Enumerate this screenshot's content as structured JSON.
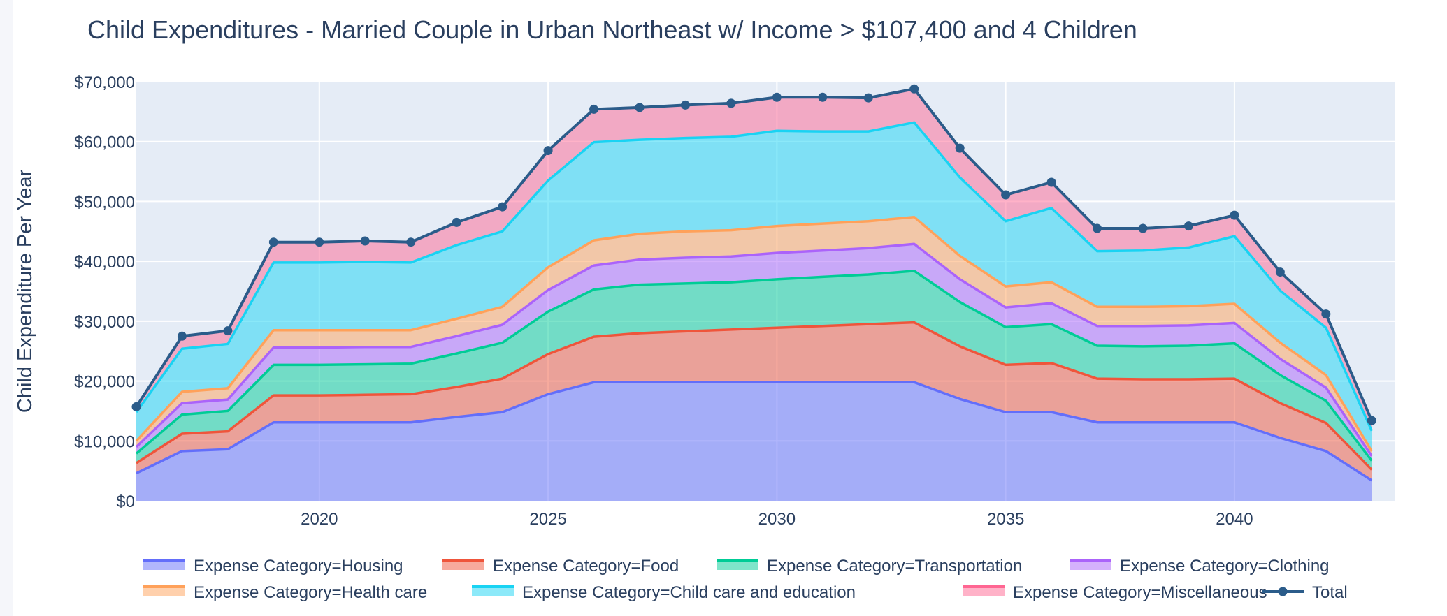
{
  "chart_data": {
    "type": "area",
    "title": "Child Expenditures - Married Couple in Urban Northeast w/ Income > $107,400 and 4 Children",
    "xlabel": "",
    "ylabel": "Child Expenditure Per Year",
    "xlim": [
      2016,
      2043.5
    ],
    "ylim": [
      0,
      70000
    ],
    "x_ticks": [
      2020,
      2025,
      2030,
      2035,
      2040
    ],
    "x_tick_labels": [
      "2020",
      "2025",
      "2030",
      "2035",
      "2040"
    ],
    "y_ticks": [
      0,
      10000,
      20000,
      30000,
      40000,
      50000,
      60000,
      70000
    ],
    "y_tick_labels": [
      "$0",
      "$10,000",
      "$20,000",
      "$30,000",
      "$40,000",
      "$50,000",
      "$60,000",
      "$70,000"
    ],
    "grid": true,
    "stacked": true,
    "legend_position": "bottom",
    "x": [
      2016,
      2017,
      2018,
      2019,
      2020,
      2021,
      2022,
      2023,
      2024,
      2025,
      2026,
      2027,
      2028,
      2029,
      2030,
      2031,
      2032,
      2033,
      2034,
      2035,
      2036,
      2037,
      2038,
      2039,
      2040,
      2041,
      2042,
      2043
    ],
    "series": [
      {
        "name": "Expense Category=Housing",
        "color": "#636efa",
        "fill": "rgba(99,110,250,0.5)",
        "values": [
          4600,
          8300,
          8600,
          13100,
          13100,
          13100,
          13100,
          14000,
          14800,
          17800,
          19800,
          19800,
          19800,
          19800,
          19800,
          19800,
          19800,
          19800,
          17000,
          14800,
          14800,
          13100,
          13100,
          13100,
          13100,
          10500,
          8300,
          3400
        ]
      },
      {
        "name": "Expense Category=Food",
        "color": "#ef553b",
        "fill": "rgba(239,85,59,0.5)",
        "values": [
          1700,
          2900,
          3000,
          4500,
          4500,
          4600,
          4700,
          5000,
          5600,
          6700,
          7600,
          8200,
          8500,
          8800,
          9100,
          9400,
          9700,
          10000,
          8800,
          7900,
          8200,
          7300,
          7200,
          7200,
          7300,
          5800,
          4700,
          1800
        ]
      },
      {
        "name": "Expense Category=Transportation",
        "color": "#00cc96",
        "fill": "rgba(0,204,150,0.5)",
        "values": [
          1600,
          3200,
          3400,
          5100,
          5100,
          5100,
          5100,
          5600,
          6000,
          7100,
          7900,
          8100,
          8000,
          7900,
          8100,
          8200,
          8300,
          8600,
          7400,
          6300,
          6500,
          5500,
          5500,
          5600,
          5900,
          4700,
          3700,
          1500
        ]
      },
      {
        "name": "Expense Category=Clothing",
        "color": "#ab63fa",
        "fill": "rgba(171,99,250,0.5)",
        "values": [
          1100,
          1900,
          1900,
          2900,
          2900,
          2900,
          2800,
          2900,
          3000,
          3600,
          4000,
          4200,
          4300,
          4300,
          4400,
          4400,
          4400,
          4500,
          3800,
          3300,
          3500,
          3300,
          3400,
          3400,
          3400,
          2700,
          2200,
          800
        ]
      },
      {
        "name": "Expense Category=Health care",
        "color": "#ffa15a",
        "fill": "rgba(255,161,90,0.5)",
        "values": [
          1000,
          1900,
          1900,
          2900,
          2900,
          2800,
          2800,
          2900,
          3000,
          3800,
          4200,
          4300,
          4400,
          4400,
          4500,
          4500,
          4500,
          4500,
          3900,
          3500,
          3500,
          3200,
          3200,
          3200,
          3200,
          2700,
          2100,
          800
        ]
      },
      {
        "name": "Expense Category=Child care and education",
        "color": "#19d3f3",
        "fill": "rgba(25,211,243,0.5)",
        "values": [
          4800,
          7200,
          7400,
          11300,
          11300,
          11400,
          11300,
          12300,
          12600,
          14500,
          16400,
          15700,
          15600,
          15600,
          15900,
          15400,
          15000,
          15800,
          13100,
          10900,
          12400,
          9300,
          9400,
          9800,
          11300,
          8700,
          7900,
          3400
        ]
      },
      {
        "name": "Expense Category=Miscellaneous",
        "color": "#ff6692",
        "fill": "rgba(255,102,146,0.5)",
        "values": [
          900,
          2100,
          2200,
          3400,
          3400,
          3500,
          3400,
          3800,
          4100,
          5000,
          5500,
          5400,
          5500,
          5600,
          5600,
          5700,
          5600,
          5600,
          4900,
          4400,
          4300,
          3800,
          3700,
          3600,
          3500,
          3100,
          2300,
          1700
        ]
      }
    ],
    "total": {
      "name": "Total",
      "color": "#2b5c8a",
      "values": [
        15700,
        27500,
        28400,
        43200,
        43200,
        43400,
        43200,
        46500,
        49100,
        58500,
        65400,
        65700,
        66100,
        66400,
        67400,
        67400,
        67300,
        68800,
        58900,
        51100,
        53200,
        45500,
        45500,
        45900,
        47700,
        38200,
        31200,
        13400
      ]
    }
  }
}
